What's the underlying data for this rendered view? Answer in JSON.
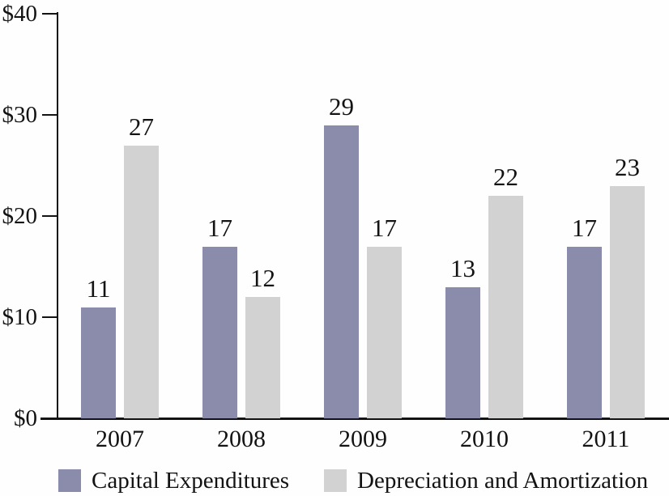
{
  "chart_data": {
    "type": "bar",
    "title": "",
    "xlabel": "",
    "ylabel": "",
    "categories": [
      "2007",
      "2008",
      "2009",
      "2010",
      "2011"
    ],
    "series": [
      {
        "name": "Capital Expenditures",
        "color": "#8b8bac",
        "values": [
          11,
          17,
          29,
          13,
          17
        ]
      },
      {
        "name": "Depreciation and Amortization",
        "color": "#d2d2d2",
        "values": [
          27,
          12,
          17,
          22,
          23
        ]
      }
    ],
    "yticks": [
      0,
      10,
      20,
      30,
      40
    ],
    "ytick_labels": [
      "$0",
      "$10",
      "$20",
      "$30",
      "$40"
    ],
    "ylim": [
      0,
      40
    ],
    "currency_prefix": "$",
    "grid": false,
    "value_labels": true,
    "legend_position": "bottom",
    "axis_color": "#131313",
    "text_color": "#131313",
    "background_color": "#fefefe"
  }
}
